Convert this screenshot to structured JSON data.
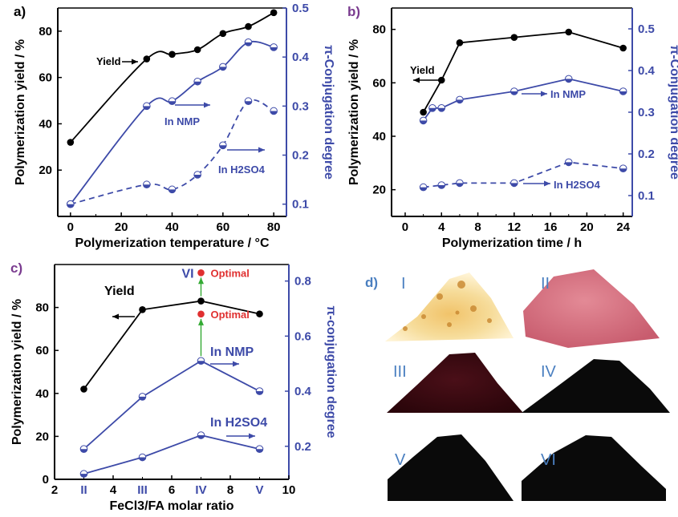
{
  "colors": {
    "left": "#000000",
    "right": "#3d4aa8",
    "red": "#e03030",
    "green": "#33aa33",
    "roman": "#4a7fc0"
  },
  "chart_data": [
    {
      "panel": "a)",
      "type": "line",
      "xlabel": "Polymerization temperature / °C",
      "ylabel": "Polymerization yield / %",
      "y2label": "π-Conjugation degree",
      "xlim": [
        -5,
        85
      ],
      "ylim": [
        0,
        90
      ],
      "y2lim": [
        0.075,
        0.5
      ],
      "xticks": [
        0,
        20,
        40,
        60,
        80
      ],
      "yticks": [
        20,
        40,
        60,
        80
      ],
      "y2ticks": [
        0.1,
        0.2,
        0.3,
        0.4,
        0.5
      ],
      "series": [
        {
          "name": "Yield",
          "axis": "left",
          "x": [
            0,
            30,
            40,
            50,
            60,
            70,
            80
          ],
          "values": [
            32,
            68,
            70,
            72,
            79,
            82,
            88
          ]
        },
        {
          "name": "In NMP",
          "axis": "right",
          "x": [
            0,
            30,
            40,
            50,
            60,
            70,
            80
          ],
          "values": [
            0.1,
            0.3,
            0.31,
            0.35,
            0.38,
            0.43,
            0.42
          ]
        },
        {
          "name": "In H2SO4",
          "axis": "right",
          "dashed": true,
          "x": [
            0,
            30,
            40,
            50,
            60,
            70,
            80
          ],
          "values": [
            0.1,
            0.14,
            0.13,
            0.16,
            0.22,
            0.31,
            0.29
          ]
        }
      ],
      "annotations": [
        "Yield",
        "In NMP",
        "In H2SO4"
      ]
    },
    {
      "panel": "b)",
      "type": "line",
      "xlabel": "Polymerization time / h",
      "ylabel": "Polymerization yield / %",
      "y2label": "π-Conjugation degree",
      "xlim": [
        -1.5,
        25
      ],
      "ylim": [
        10,
        88
      ],
      "y2lim": [
        0.05,
        0.55
      ],
      "xticks": [
        0,
        4,
        8,
        12,
        16,
        20,
        24
      ],
      "yticks": [
        20,
        40,
        60,
        80
      ],
      "y2ticks": [
        0.1,
        0.2,
        0.3,
        0.4,
        0.5
      ],
      "series": [
        {
          "name": "Yield",
          "axis": "left",
          "x": [
            2,
            4,
            6,
            12,
            18,
            24
          ],
          "values": [
            49,
            61,
            75,
            77,
            79,
            73
          ]
        },
        {
          "name": "In NMP",
          "axis": "right",
          "x": [
            2,
            3,
            4,
            6,
            12,
            18,
            24
          ],
          "values": [
            0.28,
            0.31,
            0.31,
            0.33,
            0.35,
            0.38,
            0.35
          ]
        },
        {
          "name": "In H2SO4",
          "axis": "right",
          "dashed": true,
          "x": [
            2,
            4,
            6,
            12,
            18,
            24
          ],
          "values": [
            0.12,
            0.125,
            0.13,
            0.13,
            0.18,
            0.165
          ]
        }
      ],
      "annotations": [
        "Yield",
        "In NMP",
        "In H2SO4"
      ]
    },
    {
      "panel": "c)",
      "type": "line",
      "xlabel": "FeCl3/FA molar ratio",
      "ylabel": "Polymerization yield / %",
      "y2label": "π-conjugation degree",
      "xlim": [
        2,
        10
      ],
      "ylim": [
        0,
        100
      ],
      "y2lim": [
        0.08,
        0.86
      ],
      "xticks": [
        2,
        4,
        6,
        8,
        10
      ],
      "xtick_labels": [
        "2",
        "4",
        "6",
        "8",
        "10"
      ],
      "yticks": [
        0,
        20,
        40,
        60,
        80
      ],
      "y2ticks": [
        0.2,
        0.4,
        0.6,
        0.8
      ],
      "roman_ticks": {
        "x": [
          3,
          5,
          7,
          9
        ],
        "labels": [
          "II",
          "III",
          "IV",
          "V"
        ]
      },
      "series": [
        {
          "name": "Yield",
          "axis": "left",
          "x": [
            3,
            5,
            7,
            9
          ],
          "values": [
            42,
            79,
            83,
            77
          ]
        },
        {
          "name": "In NMP",
          "axis": "right",
          "x": [
            3,
            5,
            7,
            9
          ],
          "values": [
            0.19,
            0.38,
            0.51,
            0.4
          ]
        },
        {
          "name": "In H2SO4",
          "axis": "right",
          "x": [
            3,
            5,
            7,
            9
          ],
          "values": [
            0.1,
            0.16,
            0.24,
            0.19
          ]
        }
      ],
      "optimal": [
        {
          "label": "Optimal",
          "x": 7,
          "y2": 0.83,
          "tag": "VI"
        },
        {
          "label": "Optimal",
          "x": 7,
          "y2": 0.68
        }
      ],
      "annotations": [
        "Yield",
        "In NMP",
        "In H2SO4"
      ]
    }
  ],
  "panel_d": {
    "letter": "d)",
    "samples": [
      "I",
      "II",
      "III",
      "IV",
      "V",
      "VI"
    ]
  }
}
